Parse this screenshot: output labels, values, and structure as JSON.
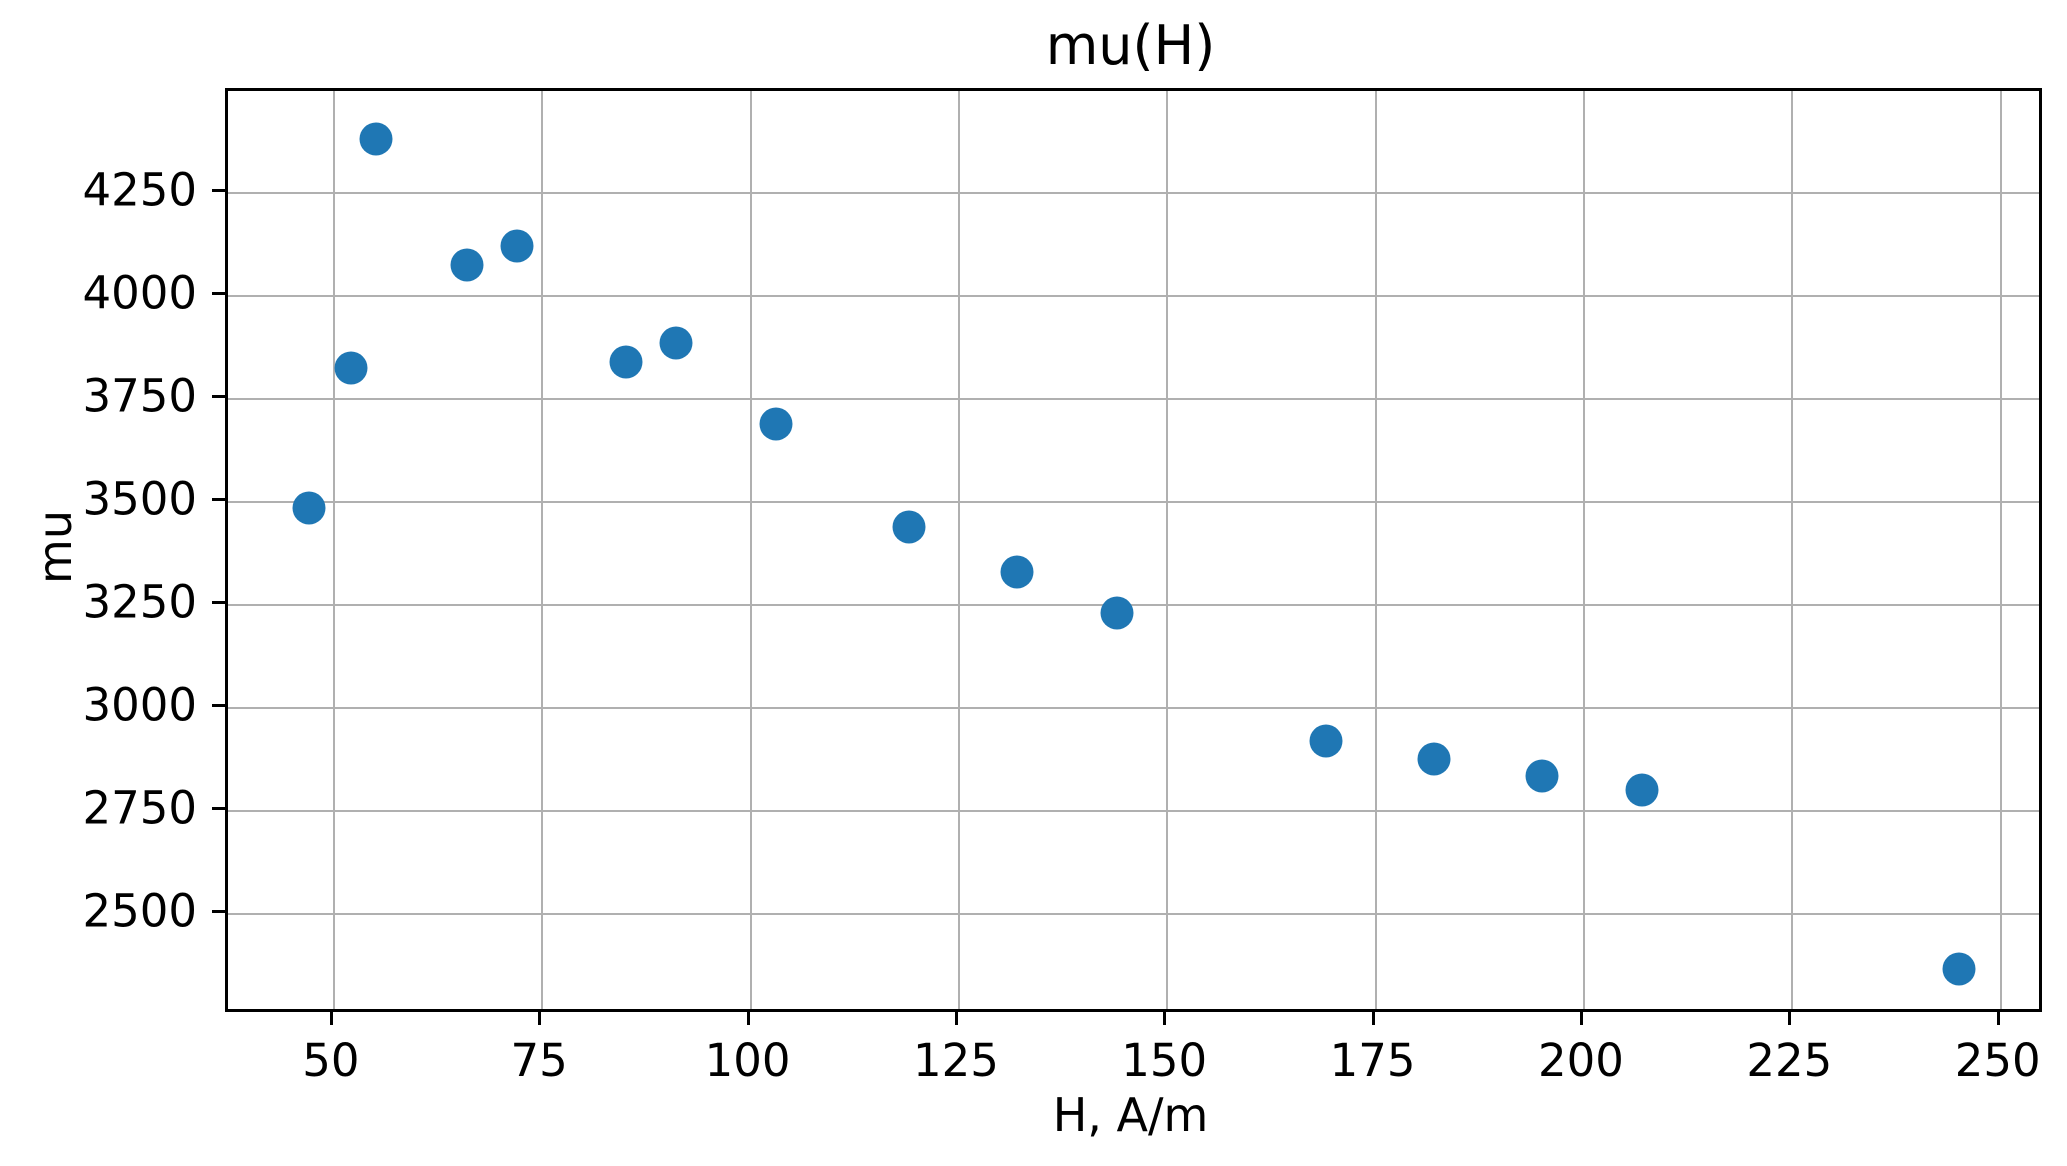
{
  "chart_data": {
    "type": "scatter",
    "title": "mu(H)",
    "xlabel": "H, A/m",
    "ylabel": "mu",
    "x": [
      47,
      52,
      55,
      66,
      72,
      85,
      91,
      103,
      119,
      132,
      144,
      169,
      182,
      195,
      207,
      245
    ],
    "y": [
      3485,
      3825,
      4380,
      4075,
      4120,
      3840,
      3885,
      3690,
      3440,
      3330,
      3230,
      2920,
      2875,
      2835,
      2800,
      2365
    ],
    "xlim": [
      37.3,
      254.6
    ],
    "ylim": [
      2269,
      4497
    ],
    "xticks": [
      50,
      75,
      100,
      125,
      150,
      175,
      200,
      225,
      250
    ],
    "yticks": [
      2500,
      2750,
      3000,
      3250,
      3500,
      3750,
      4000,
      4250
    ],
    "grid": true,
    "legend": "none",
    "marker_color": "#1f77b4",
    "grid_color": "#b0b0b0",
    "spine_color": "#000000",
    "background": "#ffffff"
  }
}
